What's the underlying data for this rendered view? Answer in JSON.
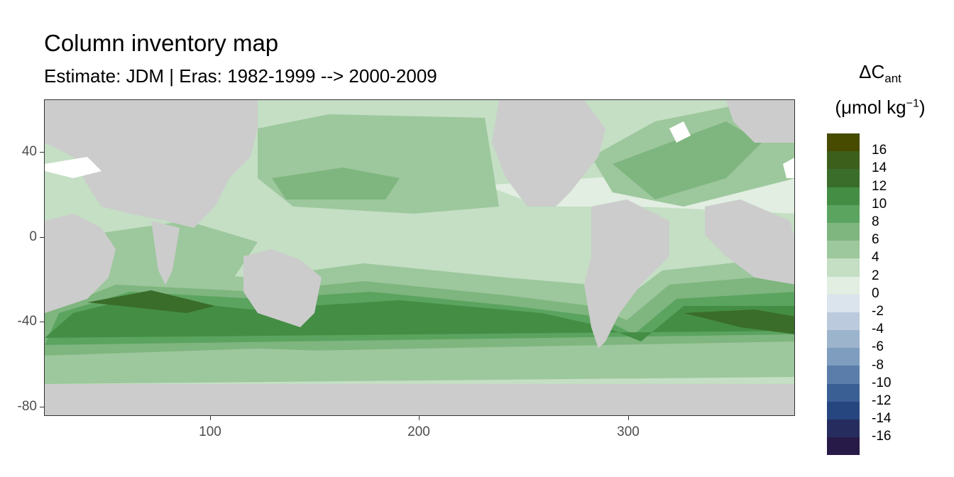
{
  "title": "Column inventory map",
  "subtitle": "Estimate: JDM  | Eras: 1982-1999 --> 2000-2009",
  "legend": {
    "title_line1_main": "ΔC",
    "title_line1_sub": "ant",
    "title_line2_main": "(μmol kg",
    "title_line2_sup": "−1",
    "title_line2_end": ")",
    "labels": [
      "16",
      "14",
      "12",
      "10",
      "8",
      "6",
      "4",
      "2",
      "0",
      "-2",
      "-4",
      "-6",
      "-8",
      "-10",
      "-12",
      "-14",
      "-16"
    ],
    "colors": [
      "#464b00",
      "#3d5f1c",
      "#3a6d29",
      "#448d45",
      "#5ba460",
      "#7fb57f",
      "#9dc79d",
      "#c4dfc4",
      "#e1eee1",
      "#dbe3ec",
      "#bccadd",
      "#9db4cd",
      "#7e9dbf",
      "#5a7ea9",
      "#3a5f94",
      "#264680",
      "#262d5e",
      "#281a48"
    ]
  },
  "axes": {
    "x_ticks": [
      "100",
      "200",
      "300"
    ],
    "y_ticks": [
      "40",
      "0",
      "-40",
      "-80"
    ]
  },
  "map": {
    "land_color": "#cccccc",
    "ocean_base_color": "#c4dfc4",
    "ice_color": "#ffffff"
  }
}
